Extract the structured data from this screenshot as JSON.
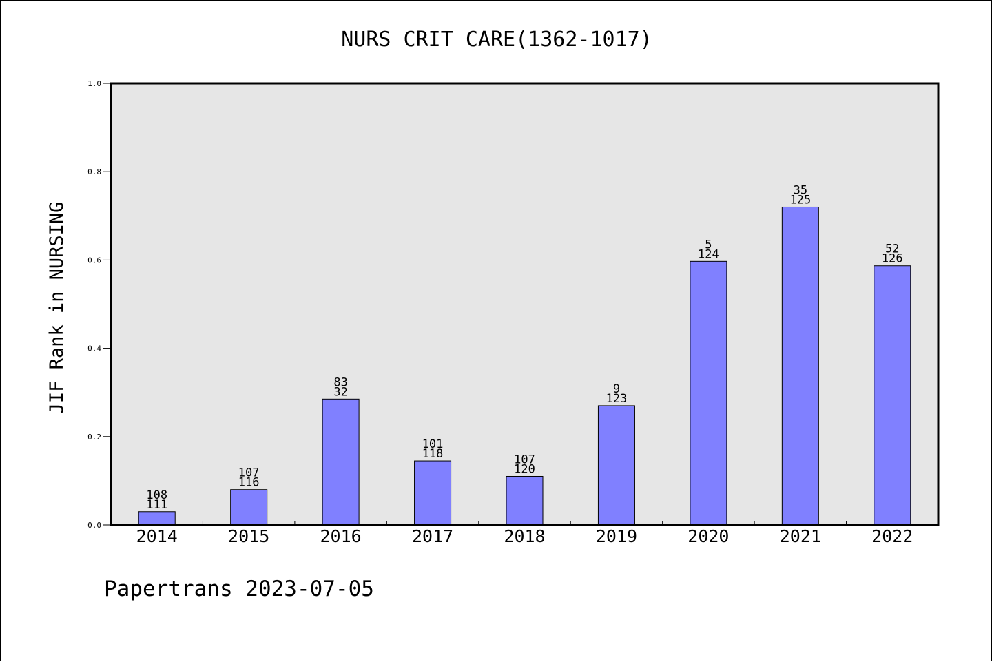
{
  "chart_data": {
    "type": "bar",
    "title": "NURS CRIT CARE(1362-1017)",
    "ylabel": "JIF Rank in NURSING",
    "xlabel": "",
    "ylim": [
      0,
      1.0
    ],
    "yticks": [
      "0.0",
      "0.2",
      "0.4",
      "0.6",
      "0.8",
      "1.0"
    ],
    "categories": [
      "2014",
      "2015",
      "2016",
      "2017",
      "2018",
      "2019",
      "2020",
      "2021",
      "2022"
    ],
    "values": [
      0.03,
      0.08,
      0.285,
      0.145,
      0.11,
      0.27,
      0.597,
      0.72,
      0.587
    ],
    "bar_labels_top": [
      "108",
      "107",
      "83",
      "101",
      "107",
      "9",
      "5",
      "35",
      "52"
    ],
    "bar_labels_bottom": [
      "111",
      "116",
      "32",
      "118",
      "120",
      "123",
      "124",
      "125",
      "126"
    ],
    "grid": false,
    "bar_color": "#8080ff",
    "plot_background": "#e6e6e6"
  },
  "footer": {
    "text": "Papertrans 2023-07-05"
  }
}
